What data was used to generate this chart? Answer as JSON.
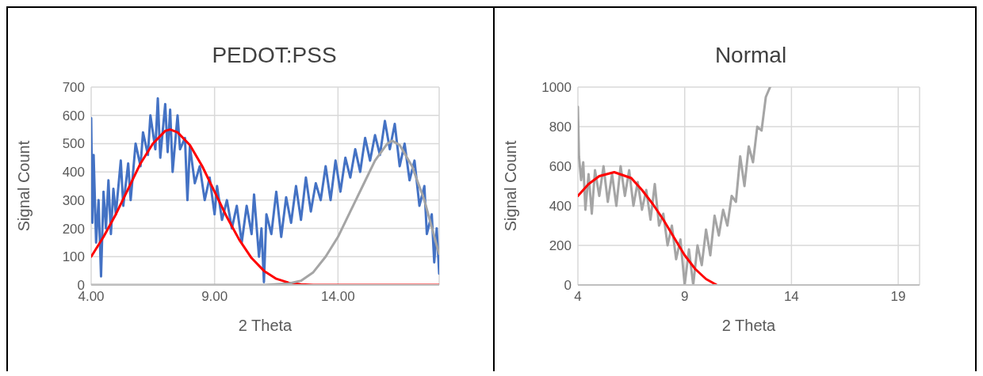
{
  "chart_data": [
    {
      "type": "line",
      "title": "PEDOT:PSS",
      "xlabel": "2 Theta",
      "ylabel": "Signal Count",
      "xlim": [
        4,
        18.1
      ],
      "xticks": [
        {
          "value": 4,
          "label": "4.00"
        },
        {
          "value": 9,
          "label": "9.00"
        },
        {
          "value": 14,
          "label": "14.00"
        }
      ],
      "ylim": [
        0,
        700
      ],
      "yticks": [
        0,
        100,
        200,
        300,
        400,
        500,
        600,
        700
      ],
      "grid": true,
      "marker": "none",
      "series": [
        {
          "color": "#4472c4",
          "x": [
            4.0,
            4.05,
            4.1,
            4.2,
            4.3,
            4.4,
            4.5,
            4.6,
            4.7,
            4.8,
            4.9,
            5.0,
            5.2,
            5.3,
            5.5,
            5.6,
            5.8,
            6.0,
            6.1,
            6.3,
            6.4,
            6.6,
            6.7,
            6.8,
            7.0,
            7.1,
            7.2,
            7.3,
            7.5,
            7.6,
            7.8,
            7.9,
            8.0,
            8.2,
            8.4,
            8.6,
            8.8,
            9.0,
            9.1,
            9.3,
            9.5,
            9.7,
            9.9,
            10.1,
            10.3,
            10.5,
            10.6,
            10.8,
            10.9,
            11.0,
            11.1,
            11.3,
            11.5,
            11.7,
            11.9,
            12.1,
            12.3,
            12.5,
            12.7,
            12.9,
            13.1,
            13.3,
            13.5,
            13.7,
            13.9,
            14.1,
            14.3,
            14.5,
            14.7,
            14.9,
            15.1,
            15.3,
            15.5,
            15.7,
            15.9,
            16.1,
            16.3,
            16.5,
            16.7,
            16.9,
            17.1,
            17.3,
            17.5,
            17.6,
            17.8,
            17.9,
            18.0,
            18.1
          ],
          "values": [
            590,
            220,
            460,
            150,
            300,
            30,
            330,
            200,
            370,
            180,
            340,
            250,
            440,
            280,
            430,
            300,
            500,
            420,
            540,
            460,
            600,
            480,
            660,
            450,
            640,
            470,
            620,
            400,
            600,
            480,
            520,
            300,
            490,
            360,
            420,
            300,
            380,
            250,
            350,
            230,
            300,
            200,
            280,
            150,
            280,
            180,
            320,
            100,
            200,
            10,
            250,
            180,
            330,
            170,
            310,
            220,
            350,
            230,
            380,
            260,
            360,
            300,
            420,
            300,
            440,
            330,
            450,
            380,
            480,
            400,
            520,
            440,
            530,
            460,
            580,
            480,
            570,
            420,
            500,
            370,
            440,
            280,
            350,
            180,
            250,
            80,
            200,
            40
          ]
        },
        {
          "color": "#ff0000",
          "x": [
            4,
            4.5,
            5,
            5.5,
            6,
            6.5,
            7,
            7.2,
            7.5,
            8,
            8.5,
            9,
            9.5,
            10,
            10.5,
            11,
            11.5,
            12,
            12.5,
            13,
            18.1
          ],
          "values": [
            100,
            170,
            250,
            340,
            430,
            500,
            545,
            550,
            540,
            495,
            420,
            330,
            240,
            160,
            95,
            50,
            22,
            8,
            2,
            0,
            0
          ]
        },
        {
          "color": "#a5a5a5",
          "x": [
            4,
            11,
            12,
            12.5,
            13,
            13.5,
            14,
            14.5,
            15,
            15.5,
            16,
            16.2,
            16.5,
            17,
            17.5,
            18,
            18.1
          ],
          "values": [
            0,
            0,
            5,
            15,
            45,
            100,
            170,
            260,
            350,
            440,
            500,
            510,
            495,
            420,
            300,
            140,
            110
          ]
        }
      ]
    },
    {
      "type": "line",
      "title": "Normal",
      "xlabel": "2 Theta",
      "ylabel": "Signal Count",
      "xlim": [
        4,
        20
      ],
      "xticks": [
        4,
        9,
        14,
        19
      ],
      "ylim": [
        0,
        1000
      ],
      "yticks": [
        0,
        200,
        400,
        600,
        800,
        1000
      ],
      "grid": true,
      "marker": "none",
      "series": [
        {
          "color": "#a5a5a5",
          "x": [
            4.0,
            4.05,
            4.15,
            4.25,
            4.35,
            4.5,
            4.65,
            4.8,
            5.0,
            5.2,
            5.4,
            5.6,
            5.8,
            6.0,
            6.2,
            6.4,
            6.6,
            6.8,
            7.0,
            7.2,
            7.4,
            7.6,
            7.8,
            8.0,
            8.2,
            8.4,
            8.6,
            8.8,
            9.0,
            9.2,
            9.4,
            9.6,
            9.8,
            10.0,
            10.2,
            10.4,
            10.6,
            10.8,
            11.0,
            11.2,
            11.4,
            11.6,
            11.8,
            12.0,
            12.2,
            12.4,
            12.6,
            12.8,
            13.0
          ],
          "values": [
            900,
            650,
            530,
            620,
            380,
            560,
            360,
            580,
            450,
            600,
            420,
            560,
            400,
            600,
            450,
            580,
            400,
            520,
            380,
            480,
            330,
            510,
            300,
            360,
            200,
            300,
            130,
            230,
            0,
            180,
            0,
            200,
            100,
            280,
            150,
            350,
            250,
            380,
            300,
            450,
            420,
            650,
            500,
            700,
            620,
            800,
            780,
            950,
            1000
          ]
        },
        {
          "color": "#ff0000",
          "x": [
            4,
            4.5,
            5,
            5.7,
            6.5,
            7,
            7.5,
            8,
            8.5,
            9,
            9.5,
            10,
            10.5
          ],
          "values": [
            450,
            510,
            550,
            570,
            540,
            480,
            410,
            330,
            240,
            150,
            80,
            30,
            0
          ]
        }
      ]
    }
  ]
}
